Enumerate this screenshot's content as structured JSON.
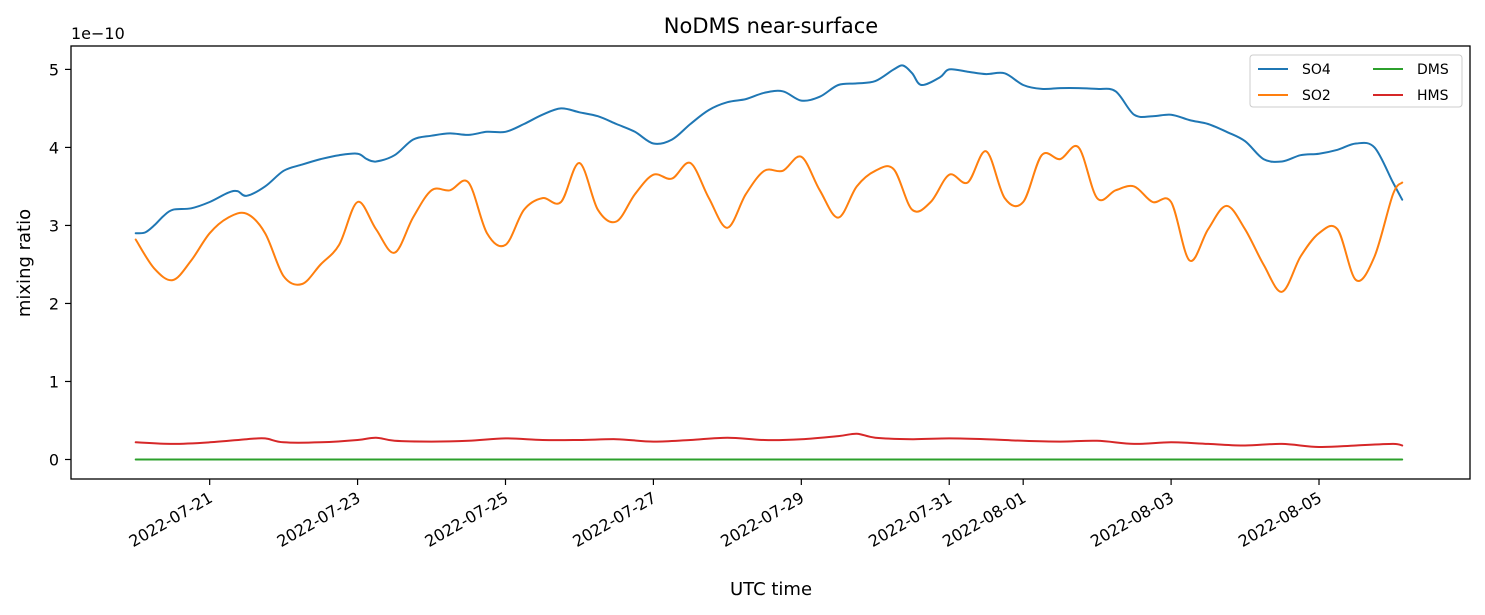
{
  "chart_data": {
    "type": "line",
    "title": "NoDMS near-surface",
    "xlabel": "UTC time",
    "ylabel": "mixing ratio",
    "y_offset_text": "1e−10",
    "y_scale": 1e-10,
    "ylim": [
      -0.25,
      5.3
    ],
    "xlim": [
      "2022-07-19 03:00",
      "2022-08-07 01:00"
    ],
    "grid": false,
    "legend": {
      "placement": "top-right",
      "columns": 2
    },
    "y_ticks": [
      0,
      1,
      2,
      3,
      4,
      5
    ],
    "x_ticks": [
      "2022-07-21",
      "2022-07-23",
      "2022-07-25",
      "2022-07-27",
      "2022-07-29",
      "2022-07-31",
      "2022-08-01",
      "2022-08-03",
      "2022-08-05"
    ],
    "series": [
      {
        "name": "SO4",
        "color": "#1f77b4",
        "points": [
          [
            "2022-07-20 00:00",
            2.9
          ],
          [
            "2022-07-20 03:00",
            2.91
          ],
          [
            "2022-07-20 06:00",
            3.0
          ],
          [
            "2022-07-20 09:00",
            3.12
          ],
          [
            "2022-07-20 12:00",
            3.2
          ],
          [
            "2022-07-20 18:00",
            3.22
          ],
          [
            "2022-07-21 00:00",
            3.3
          ],
          [
            "2022-07-21 06:00",
            3.42
          ],
          [
            "2022-07-21 09:00",
            3.44
          ],
          [
            "2022-07-21 12:00",
            3.38
          ],
          [
            "2022-07-21 18:00",
            3.5
          ],
          [
            "2022-07-22 00:00",
            3.7
          ],
          [
            "2022-07-22 06:00",
            3.78
          ],
          [
            "2022-07-22 12:00",
            3.85
          ],
          [
            "2022-07-22 18:00",
            3.9
          ],
          [
            "2022-07-23 00:00",
            3.92
          ],
          [
            "2022-07-23 03:00",
            3.85
          ],
          [
            "2022-07-23 06:00",
            3.82
          ],
          [
            "2022-07-23 12:00",
            3.9
          ],
          [
            "2022-07-23 18:00",
            4.1
          ],
          [
            "2022-07-24 00:00",
            4.15
          ],
          [
            "2022-07-24 06:00",
            4.18
          ],
          [
            "2022-07-24 12:00",
            4.16
          ],
          [
            "2022-07-24 18:00",
            4.2
          ],
          [
            "2022-07-25 00:00",
            4.2
          ],
          [
            "2022-07-25 06:00",
            4.3
          ],
          [
            "2022-07-25 12:00",
            4.42
          ],
          [
            "2022-07-25 18:00",
            4.5
          ],
          [
            "2022-07-26 00:00",
            4.45
          ],
          [
            "2022-07-26 06:00",
            4.4
          ],
          [
            "2022-07-26 12:00",
            4.3
          ],
          [
            "2022-07-26 18:00",
            4.2
          ],
          [
            "2022-07-27 00:00",
            4.05
          ],
          [
            "2022-07-27 06:00",
            4.1
          ],
          [
            "2022-07-27 12:00",
            4.3
          ],
          [
            "2022-07-27 18:00",
            4.48
          ],
          [
            "2022-07-28 00:00",
            4.58
          ],
          [
            "2022-07-28 06:00",
            4.62
          ],
          [
            "2022-07-28 12:00",
            4.7
          ],
          [
            "2022-07-28 18:00",
            4.72
          ],
          [
            "2022-07-29 00:00",
            4.6
          ],
          [
            "2022-07-29 06:00",
            4.65
          ],
          [
            "2022-07-29 12:00",
            4.8
          ],
          [
            "2022-07-29 18:00",
            4.82
          ],
          [
            "2022-07-30 00:00",
            4.85
          ],
          [
            "2022-07-30 06:00",
            5.0
          ],
          [
            "2022-07-30 09:00",
            5.05
          ],
          [
            "2022-07-30 12:00",
            4.95
          ],
          [
            "2022-07-30 15:00",
            4.8
          ],
          [
            "2022-07-30 21:00",
            4.9
          ],
          [
            "2022-07-31 00:00",
            5.0
          ],
          [
            "2022-07-31 06:00",
            4.97
          ],
          [
            "2022-07-31 12:00",
            4.94
          ],
          [
            "2022-07-31 18:00",
            4.95
          ],
          [
            "2022-08-01 00:00",
            4.8
          ],
          [
            "2022-08-01 06:00",
            4.75
          ],
          [
            "2022-08-01 12:00",
            4.76
          ],
          [
            "2022-08-01 18:00",
            4.76
          ],
          [
            "2022-08-02 00:00",
            4.75
          ],
          [
            "2022-08-02 06:00",
            4.72
          ],
          [
            "2022-08-02 12:00",
            4.42
          ],
          [
            "2022-08-02 18:00",
            4.4
          ],
          [
            "2022-08-03 00:00",
            4.42
          ],
          [
            "2022-08-03 06:00",
            4.35
          ],
          [
            "2022-08-03 12:00",
            4.3
          ],
          [
            "2022-08-03 18:00",
            4.2
          ],
          [
            "2022-08-04 00:00",
            4.08
          ],
          [
            "2022-08-04 06:00",
            3.85
          ],
          [
            "2022-08-04 12:00",
            3.82
          ],
          [
            "2022-08-04 18:00",
            3.9
          ],
          [
            "2022-08-05 00:00",
            3.92
          ],
          [
            "2022-08-05 06:00",
            3.97
          ],
          [
            "2022-08-05 12:00",
            4.05
          ],
          [
            "2022-08-05 18:00",
            4.0
          ],
          [
            "2022-08-06 00:00",
            3.55
          ],
          [
            "2022-08-06 03:00",
            3.33
          ]
        ]
      },
      {
        "name": "SO2",
        "color": "#ff7f0e",
        "points": [
          [
            "2022-07-20 00:00",
            2.82
          ],
          [
            "2022-07-20 06:00",
            2.45
          ],
          [
            "2022-07-20 12:00",
            2.3
          ],
          [
            "2022-07-20 18:00",
            2.55
          ],
          [
            "2022-07-21 00:00",
            2.9
          ],
          [
            "2022-07-21 06:00",
            3.1
          ],
          [
            "2022-07-21 12:00",
            3.15
          ],
          [
            "2022-07-21 18:00",
            2.9
          ],
          [
            "2022-07-22 00:00",
            2.35
          ],
          [
            "2022-07-22 06:00",
            2.25
          ],
          [
            "2022-07-22 12:00",
            2.5
          ],
          [
            "2022-07-22 18:00",
            2.75
          ],
          [
            "2022-07-23 00:00",
            3.3
          ],
          [
            "2022-07-23 06:00",
            2.95
          ],
          [
            "2022-07-23 12:00",
            2.65
          ],
          [
            "2022-07-23 18:00",
            3.1
          ],
          [
            "2022-07-24 00:00",
            3.45
          ],
          [
            "2022-07-24 06:00",
            3.45
          ],
          [
            "2022-07-24 12:00",
            3.55
          ],
          [
            "2022-07-24 18:00",
            2.9
          ],
          [
            "2022-07-25 00:00",
            2.75
          ],
          [
            "2022-07-25 06:00",
            3.2
          ],
          [
            "2022-07-25 12:00",
            3.35
          ],
          [
            "2022-07-25 18:00",
            3.3
          ],
          [
            "2022-07-26 00:00",
            3.8
          ],
          [
            "2022-07-26 06:00",
            3.2
          ],
          [
            "2022-07-26 12:00",
            3.05
          ],
          [
            "2022-07-26 18:00",
            3.4
          ],
          [
            "2022-07-27 00:00",
            3.65
          ],
          [
            "2022-07-27 06:00",
            3.6
          ],
          [
            "2022-07-27 12:00",
            3.8
          ],
          [
            "2022-07-27 18:00",
            3.35
          ],
          [
            "2022-07-28 00:00",
            2.97
          ],
          [
            "2022-07-28 06:00",
            3.4
          ],
          [
            "2022-07-28 12:00",
            3.7
          ],
          [
            "2022-07-28 18:00",
            3.7
          ],
          [
            "2022-07-29 00:00",
            3.88
          ],
          [
            "2022-07-29 06:00",
            3.45
          ],
          [
            "2022-07-29 12:00",
            3.1
          ],
          [
            "2022-07-29 18:00",
            3.5
          ],
          [
            "2022-07-30 00:00",
            3.7
          ],
          [
            "2022-07-30 06:00",
            3.72
          ],
          [
            "2022-07-30 12:00",
            3.2
          ],
          [
            "2022-07-30 18:00",
            3.3
          ],
          [
            "2022-07-31 00:00",
            3.65
          ],
          [
            "2022-07-31 06:00",
            3.55
          ],
          [
            "2022-07-31 12:00",
            3.95
          ],
          [
            "2022-07-31 18:00",
            3.35
          ],
          [
            "2022-08-01 00:00",
            3.3
          ],
          [
            "2022-08-01 06:00",
            3.9
          ],
          [
            "2022-08-01 12:00",
            3.85
          ],
          [
            "2022-08-01 18:00",
            4.0
          ],
          [
            "2022-08-02 00:00",
            3.35
          ],
          [
            "2022-08-02 06:00",
            3.45
          ],
          [
            "2022-08-02 12:00",
            3.5
          ],
          [
            "2022-08-02 18:00",
            3.3
          ],
          [
            "2022-08-03 00:00",
            3.3
          ],
          [
            "2022-08-03 06:00",
            2.55
          ],
          [
            "2022-08-03 12:00",
            2.95
          ],
          [
            "2022-08-03 18:00",
            3.25
          ],
          [
            "2022-08-04 00:00",
            2.95
          ],
          [
            "2022-08-04 06:00",
            2.5
          ],
          [
            "2022-08-04 12:00",
            2.15
          ],
          [
            "2022-08-04 18:00",
            2.6
          ],
          [
            "2022-08-05 00:00",
            2.9
          ],
          [
            "2022-08-05 06:00",
            2.95
          ],
          [
            "2022-08-05 12:00",
            2.3
          ],
          [
            "2022-08-05 18:00",
            2.6
          ],
          [
            "2022-08-06 00:00",
            3.4
          ],
          [
            "2022-08-06 03:00",
            3.55
          ]
        ]
      },
      {
        "name": "DMS",
        "color": "#2ca02c",
        "points": [
          [
            "2022-07-20 00:00",
            0.0
          ],
          [
            "2022-08-06 03:00",
            0.0
          ]
        ]
      },
      {
        "name": "HMS",
        "color": "#d62728",
        "points": [
          [
            "2022-07-20 00:00",
            0.22
          ],
          [
            "2022-07-20 12:00",
            0.2
          ],
          [
            "2022-07-21 00:00",
            0.22
          ],
          [
            "2022-07-21 12:00",
            0.26
          ],
          [
            "2022-07-21 18:00",
            0.27
          ],
          [
            "2022-07-22 00:00",
            0.22
          ],
          [
            "2022-07-22 12:00",
            0.22
          ],
          [
            "2022-07-23 00:00",
            0.25
          ],
          [
            "2022-07-23 06:00",
            0.28
          ],
          [
            "2022-07-23 12:00",
            0.24
          ],
          [
            "2022-07-24 00:00",
            0.23
          ],
          [
            "2022-07-24 12:00",
            0.24
          ],
          [
            "2022-07-25 00:00",
            0.27
          ],
          [
            "2022-07-25 12:00",
            0.25
          ],
          [
            "2022-07-26 00:00",
            0.25
          ],
          [
            "2022-07-26 12:00",
            0.26
          ],
          [
            "2022-07-27 00:00",
            0.23
          ],
          [
            "2022-07-27 12:00",
            0.25
          ],
          [
            "2022-07-28 00:00",
            0.28
          ],
          [
            "2022-07-28 12:00",
            0.25
          ],
          [
            "2022-07-29 00:00",
            0.26
          ],
          [
            "2022-07-29 12:00",
            0.3
          ],
          [
            "2022-07-29 18:00",
            0.33
          ],
          [
            "2022-07-30 00:00",
            0.28
          ],
          [
            "2022-07-30 12:00",
            0.26
          ],
          [
            "2022-07-31 00:00",
            0.27
          ],
          [
            "2022-07-31 12:00",
            0.26
          ],
          [
            "2022-08-01 00:00",
            0.24
          ],
          [
            "2022-08-01 12:00",
            0.23
          ],
          [
            "2022-08-02 00:00",
            0.24
          ],
          [
            "2022-08-02 12:00",
            0.2
          ],
          [
            "2022-08-03 00:00",
            0.22
          ],
          [
            "2022-08-03 12:00",
            0.2
          ],
          [
            "2022-08-04 00:00",
            0.18
          ],
          [
            "2022-08-04 12:00",
            0.2
          ],
          [
            "2022-08-05 00:00",
            0.16
          ],
          [
            "2022-08-05 12:00",
            0.18
          ],
          [
            "2022-08-06 00:00",
            0.2
          ],
          [
            "2022-08-06 03:00",
            0.18
          ]
        ]
      }
    ]
  }
}
